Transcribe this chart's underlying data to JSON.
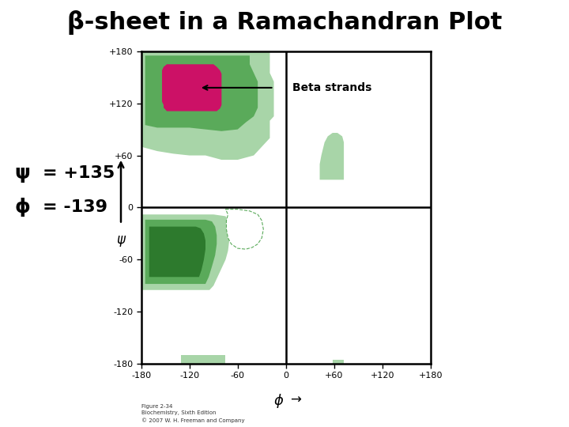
{
  "title": "β-sheet in a Ramachandran Plot",
  "title_fontsize": 22,
  "background_color": "#ffffff",
  "plot_bg_color": "#ffffff",
  "axis_xlim": [
    -180,
    180
  ],
  "axis_ylim": [
    -180,
    180
  ],
  "xticks": [
    -180,
    -120,
    -60,
    0,
    60,
    120,
    180
  ],
  "yticks": [
    -180,
    -120,
    -60,
    0,
    60,
    120,
    180
  ],
  "xlabel": "ϕ",
  "ylabel": "ψ",
  "psi_value": "= +135",
  "phi_value": "= -139",
  "beta_label": "Beta strands",
  "figure_caption": "Figure 2-34\nBiochemistry, Sixth Edition\n© 2007 W. H. Freeman and Company",
  "color_light_green": "#a8d5a8",
  "color_medium_green": "#5aaa5a",
  "color_dark_green": "#2d7a2d",
  "color_magenta": "#cc1166",
  "color_white": "#ffffff"
}
